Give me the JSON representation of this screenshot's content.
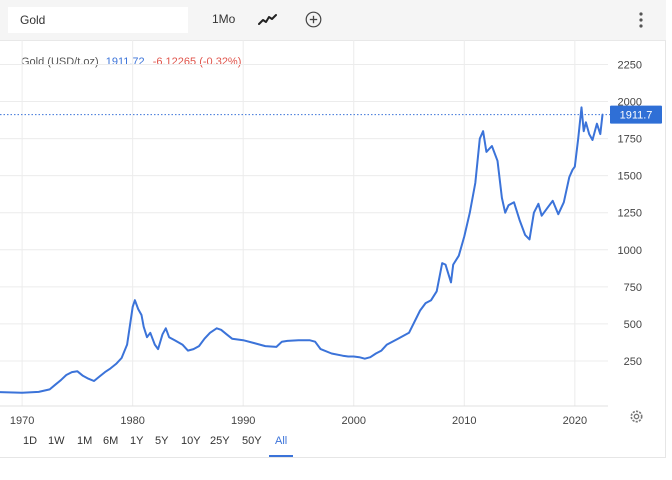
{
  "toolbar": {
    "symbol_value": "Gold",
    "interval_label": "1Mo",
    "chart_type_icon": "line-chart-icon",
    "compare_icon": "add-circle-icon",
    "menu_icon": "vertical-dots-icon"
  },
  "legend": {
    "symbol": "Gold (USD/t.oz)",
    "price": "1911.72",
    "change": "-6.12265 (-0.32%)"
  },
  "colors": {
    "line": "#3b73d9",
    "negative": "#e0544b",
    "grid": "#ececec",
    "price_tag_bg": "#2f6fd6"
  },
  "price_tag": "1911.7",
  "ranges": [
    "1D",
    "1W",
    "1M",
    "6M",
    "1Y",
    "5Y",
    "10Y",
    "25Y",
    "50Y",
    "All"
  ],
  "active_range": "All",
  "chart_data": {
    "type": "line",
    "title": "",
    "xlabel": "",
    "ylabel": "",
    "x_ticks": [
      "1970",
      "1980",
      "1990",
      "2000",
      "2010",
      "2020"
    ],
    "y_ticks": [
      "250",
      "500",
      "750",
      "1000",
      "1250",
      "1500",
      "1750",
      "2000",
      "2250"
    ],
    "xlim": [
      1968.0,
      2023.0
    ],
    "ylim": [
      0,
      2350
    ],
    "current_value": 1911.72,
    "grid": true,
    "series": [
      {
        "x": [
          1968.0,
          1970.0,
          1971.5,
          1972.5,
          1973.0,
          1973.5,
          1974.0,
          1974.5,
          1975.0,
          1975.5,
          1976.0,
          1976.5,
          1977.0,
          1977.5,
          1978.0,
          1978.5,
          1979.0,
          1979.5,
          1980.0,
          1980.2,
          1980.5,
          1980.8,
          1981.0,
          1981.3,
          1981.6,
          1982.0,
          1982.3,
          1982.7,
          1983.0,
          1983.3,
          1983.8,
          1984.5,
          1985.0,
          1985.5,
          1986.0,
          1986.5,
          1987.0,
          1987.6,
          1988.0,
          1988.5,
          1989.0,
          1990.0,
          1991.0,
          1992.0,
          1993.0,
          1993.5,
          1994.0,
          1995.0,
          1996.0,
          1996.5,
          1997.0,
          1998.0,
          1999.0,
          1999.5,
          2000.0,
          2000.5,
          2001.0,
          2001.5,
          2002.0,
          2002.5,
          2003.0,
          2004.0,
          2005.0,
          2006.0,
          2006.5,
          2007.0,
          2007.5,
          2008.0,
          2008.3,
          2008.8,
          2009.0,
          2009.5,
          2010.0,
          2010.5,
          2011.0,
          2011.4,
          2011.7,
          2012.0,
          2012.5,
          2013.0,
          2013.4,
          2013.7,
          2014.0,
          2014.5,
          2015.0,
          2015.5,
          2015.9,
          2016.3,
          2016.7,
          2017.0,
          2017.5,
          2018.0,
          2018.5,
          2019.0,
          2019.5,
          2019.8,
          2020.0,
          2020.3,
          2020.6,
          2020.8,
          2021.0,
          2021.3,
          2021.6,
          2022.0,
          2022.3,
          2022.5
        ],
        "y": [
          40,
          36,
          41,
          58,
          90,
          120,
          155,
          175,
          180,
          150,
          130,
          115,
          145,
          175,
          200,
          230,
          270,
          360,
          615,
          660,
          600,
          560,
          480,
          410,
          440,
          360,
          330,
          430,
          470,
          410,
          390,
          360,
          320,
          330,
          350,
          400,
          440,
          470,
          460,
          430,
          400,
          390,
          370,
          350,
          345,
          380,
          385,
          390,
          390,
          380,
          330,
          300,
          285,
          280,
          280,
          275,
          265,
          275,
          300,
          320,
          360,
          400,
          440,
          590,
          640,
          660,
          720,
          910,
          900,
          780,
          900,
          960,
          1090,
          1250,
          1450,
          1750,
          1800,
          1660,
          1700,
          1600,
          1350,
          1250,
          1300,
          1320,
          1200,
          1100,
          1070,
          1250,
          1310,
          1230,
          1280,
          1330,
          1240,
          1320,
          1490,
          1540,
          1560,
          1750,
          1960,
          1800,
          1860,
          1780,
          1740,
          1850,
          1780,
          1911.72
        ]
      }
    ]
  }
}
